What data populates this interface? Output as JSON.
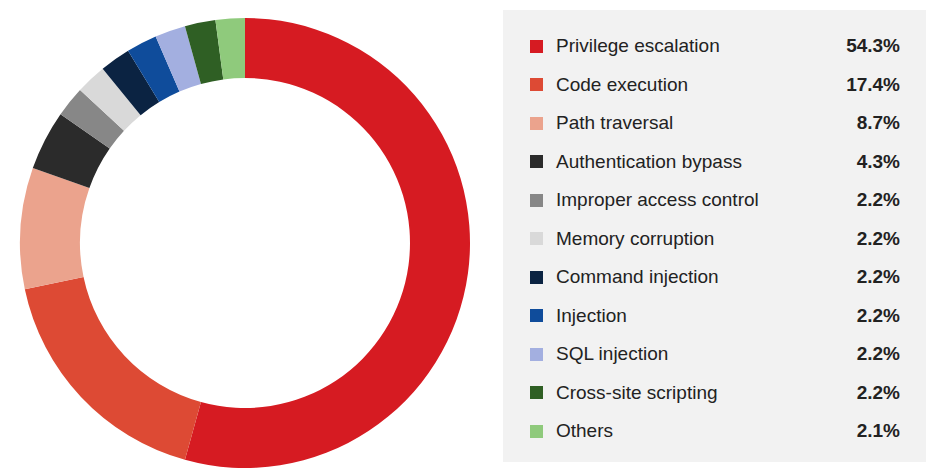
{
  "chart_data": {
    "type": "donut",
    "categories": [
      "Privilege escalation",
      "Code execution",
      "Path traversal",
      "Authentication bypass",
      "Improper access control",
      "Memory corruption",
      "Command injection",
      "Injection",
      "SQL injection",
      "Cross-site scripting",
      "Others"
    ],
    "values": [
      54.3,
      17.4,
      8.7,
      4.3,
      2.2,
      2.2,
      2.2,
      2.2,
      2.2,
      2.2,
      2.1
    ],
    "value_labels": [
      "54.3%",
      "17.4%",
      "8.7%",
      "4.3%",
      "2.2%",
      "2.2%",
      "2.2%",
      "2.2%",
      "2.2%",
      "2.2%",
      "2.1%"
    ],
    "colors": [
      "#d61b22",
      "#dd4a34",
      "#eba38d",
      "#2b2b2b",
      "#878787",
      "#d9d9d9",
      "#0b2342",
      "#0f4c9b",
      "#a3afe0",
      "#2f5f24",
      "#8fca7c"
    ],
    "legend": "right"
  }
}
